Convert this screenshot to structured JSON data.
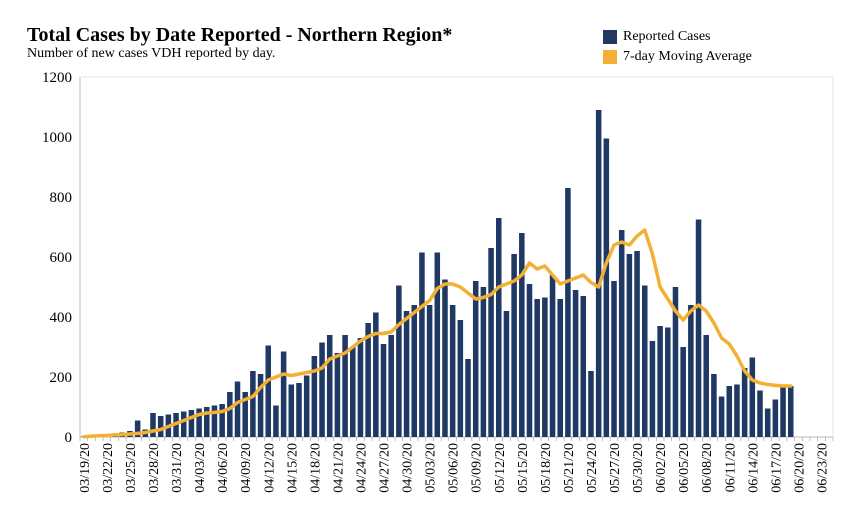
{
  "chart_data": {
    "type": "bar",
    "title": "Total Cases by Date Reported - Northern Region*",
    "subtitle": "Number of new cases VDH reported by day.",
    "legend": [
      {
        "label": "Reported Cases",
        "color": "#1f3864"
      },
      {
        "label": "7-day Moving Average",
        "color": "#f2b134"
      }
    ],
    "colors": {
      "bars": "#1f3864",
      "line": "#f2b134",
      "axis": "#bbbbbb",
      "text": "#000000"
    },
    "ylim": [
      0,
      1200
    ],
    "yticks": [
      0,
      200,
      400,
      600,
      800,
      1000,
      1200
    ],
    "xlabel": "",
    "ylabel": "",
    "x_tick_labels": [
      "03/19/20",
      "03/22/20",
      "03/25/20",
      "03/28/20",
      "03/31/20",
      "04/03/20",
      "04/06/20",
      "04/09/20",
      "04/12/20",
      "04/15/20",
      "04/18/20",
      "04/21/20",
      "04/24/20",
      "04/27/20",
      "04/30/20",
      "05/03/20",
      "05/06/20",
      "05/09/20",
      "05/12/20",
      "05/15/20",
      "05/18/20",
      "05/21/20",
      "05/24/20",
      "05/27/20",
      "05/30/20",
      "06/02/20",
      "06/05/20",
      "06/08/20",
      "06/11/20",
      "06/14/20",
      "06/17/20",
      "06/20/20",
      "06/23/20"
    ],
    "series": [
      {
        "name": "Reported Cases",
        "values": [
          2,
          4,
          8,
          10,
          12,
          15,
          20,
          55,
          25,
          80,
          70,
          75,
          80,
          85,
          90,
          95,
          100,
          105,
          110,
          150,
          185,
          150,
          220,
          210,
          305,
          105,
          285,
          175,
          180,
          205,
          270,
          315,
          340,
          280,
          340,
          300,
          330,
          380,
          415,
          310,
          340,
          505,
          420,
          440,
          615,
          440,
          615,
          525,
          440,
          390,
          260,
          520,
          500,
          630,
          730,
          420,
          610,
          680,
          510,
          460,
          465,
          540,
          460,
          830,
          490,
          470,
          220,
          1090,
          995,
          520,
          690,
          610,
          620,
          505,
          320,
          370,
          365,
          500,
          300,
          440,
          725,
          340,
          210,
          135,
          170,
          175,
          230,
          265,
          155,
          95,
          125,
          175,
          170,
          0,
          0,
          0,
          0,
          0
        ]
      },
      {
        "name": "7-day Moving Average",
        "values": [
          1,
          3,
          4,
          5,
          7,
          8,
          10,
          12,
          15,
          20,
          25,
          35,
          45,
          55,
          65,
          75,
          80,
          82,
          85,
          95,
          115,
          125,
          135,
          165,
          190,
          200,
          210,
          205,
          210,
          215,
          220,
          230,
          260,
          270,
          280,
          300,
          320,
          335,
          345,
          345,
          350,
          375,
          395,
          415,
          435,
          455,
          495,
          510,
          510,
          500,
          480,
          460,
          465,
          475,
          500,
          510,
          520,
          540,
          580,
          560,
          570,
          540,
          510,
          520,
          530,
          540,
          515,
          500,
          580,
          640,
          650,
          640,
          670,
          690,
          610,
          500,
          460,
          420,
          390,
          420,
          440,
          420,
          380,
          330,
          310,
          270,
          220,
          190,
          180,
          175,
          172,
          170,
          170
        ]
      }
    ]
  }
}
